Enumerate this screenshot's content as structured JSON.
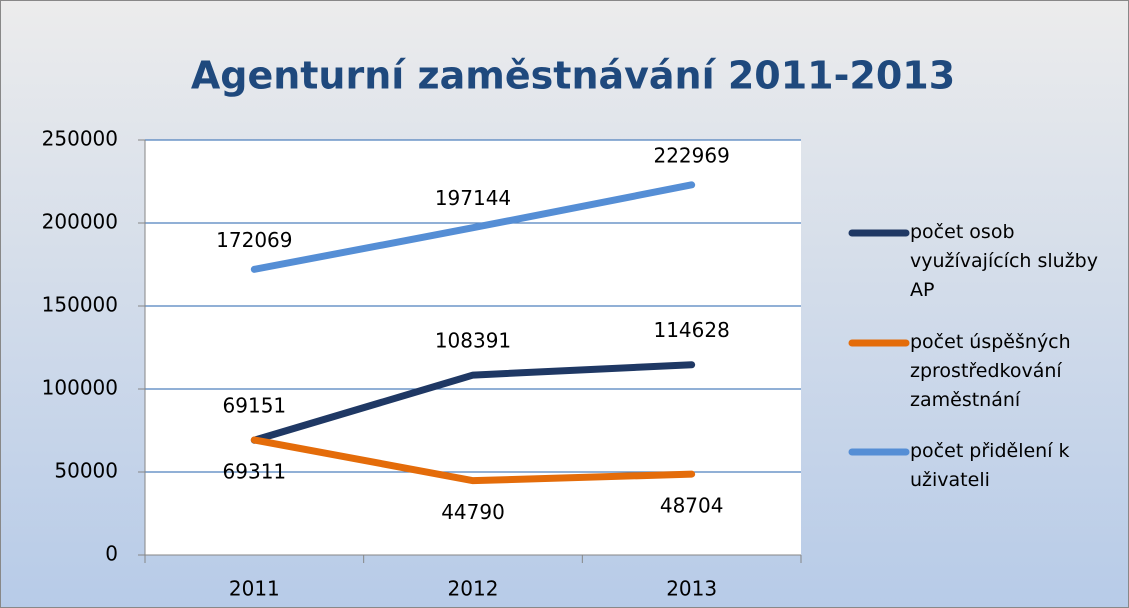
{
  "chart_data": {
    "type": "line",
    "title": "Agenturní zaměstnávání 2011-2013",
    "categories": [
      "2011",
      "2012",
      "2013"
    ],
    "series": [
      {
        "name": "počet osob využívajících služby AP",
        "color": "#1f3864",
        "values": [
          69151,
          108391,
          114628
        ]
      },
      {
        "name": "počet úspěšných zprostředkování zaměstnání",
        "color": "#e46c0a",
        "values": [
          69311,
          44790,
          48704
        ]
      },
      {
        "name": "počet přidělení k uživateli",
        "color": "#558ed5",
        "values": [
          172069,
          197144,
          222969
        ]
      }
    ],
    "ylim": [
      0,
      250000
    ],
    "yticks": [
      0,
      50000,
      100000,
      150000,
      200000,
      250000
    ],
    "grid": true,
    "legend": "right"
  }
}
